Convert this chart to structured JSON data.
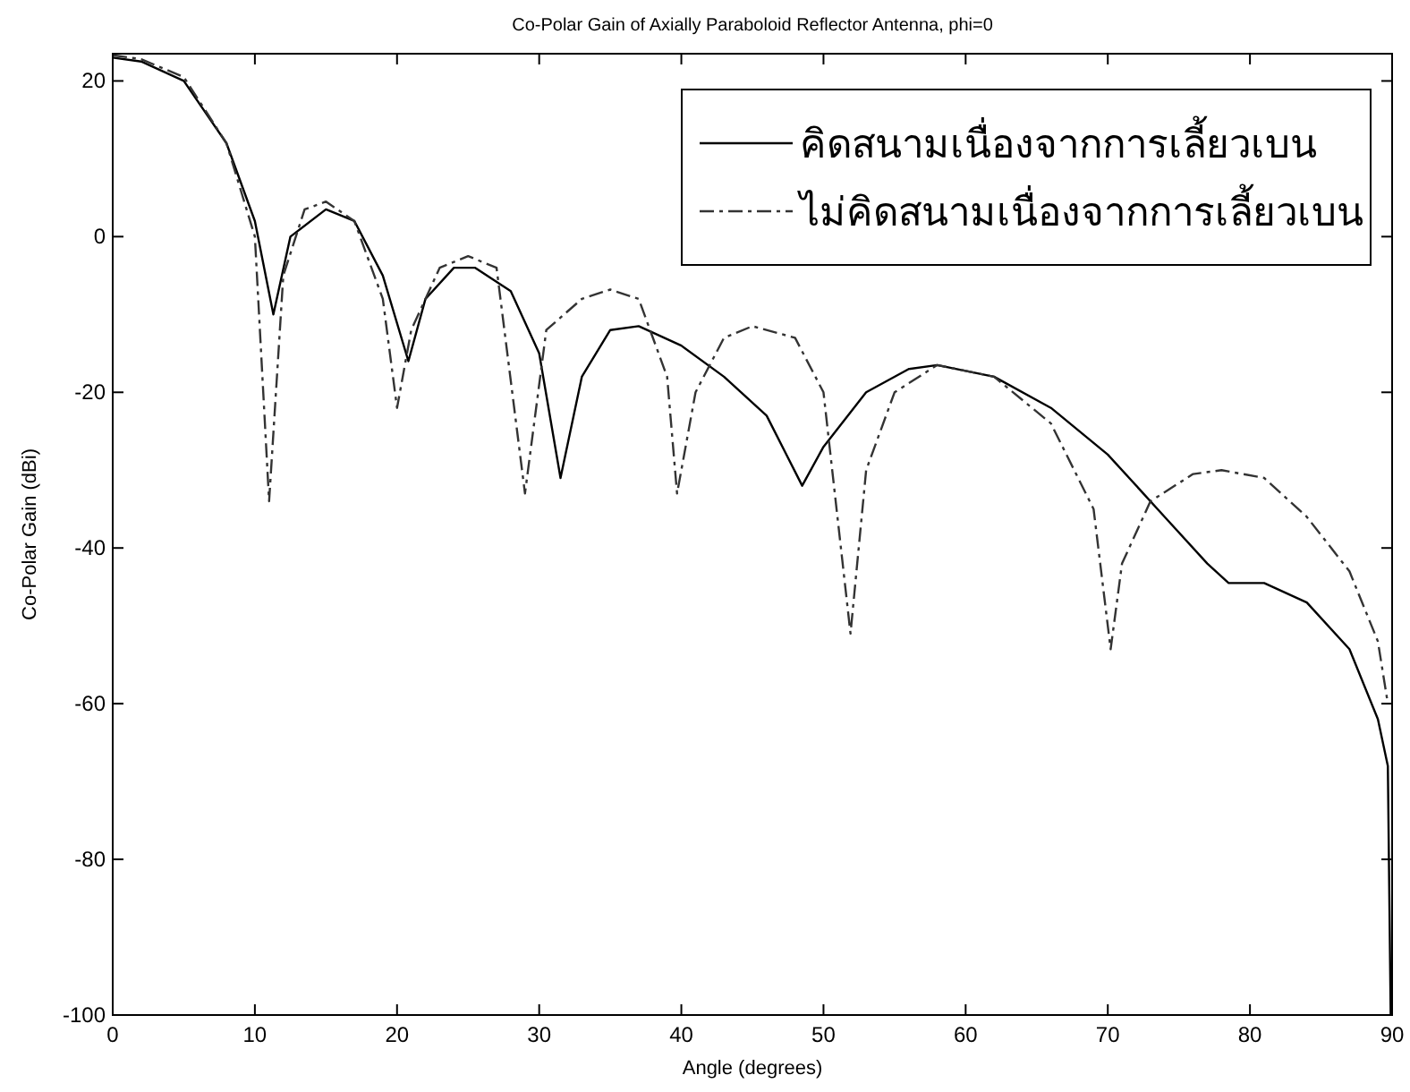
{
  "chart_data": {
    "type": "line",
    "title": "Co-Polar Gain of Axially Paraboloid Reflector Antenna, phi=0",
    "xlabel": "Angle (degrees)",
    "ylabel": "Co-Polar Gain (dBi)",
    "xlim": [
      0,
      90
    ],
    "ylim": [
      -100,
      23.5
    ],
    "xticks": [
      0,
      10,
      20,
      30,
      40,
      50,
      60,
      70,
      80,
      90
    ],
    "yticks": [
      -100,
      -80,
      -60,
      -40,
      -20,
      0,
      20
    ],
    "grid": false,
    "legend": "top right",
    "series": [
      {
        "name": "คิดสนามเนื่องจากการเลี้ยวเบน",
        "color": "#000000",
        "line_style": "solid",
        "x": [
          0,
          2,
          5,
          8,
          10,
          11.3,
          12.5,
          15,
          17,
          19,
          20.8,
          22,
          24,
          25.5,
          28,
          30,
          31.5,
          33,
          35,
          37,
          40,
          43,
          46,
          48.5,
          50,
          53,
          56,
          58,
          62,
          66,
          70,
          74,
          77,
          78.5,
          81,
          84,
          87,
          89,
          89.7,
          89.9
        ],
        "values": [
          23,
          22.5,
          20,
          12,
          2,
          -10,
          0,
          3.5,
          2,
          -5,
          -16,
          -8,
          -4,
          -4,
          -7,
          -15,
          -31,
          -18,
          -12,
          -11.5,
          -14,
          -18,
          -23,
          -32,
          -27,
          -20,
          -17,
          -16.5,
          -18,
          -22,
          -28,
          -36,
          -42,
          -44.5,
          -44.5,
          -47,
          -53,
          -62,
          -68,
          -100
        ]
      },
      {
        "name": "ไม่คิดสนามเนื่องจากการเลี้ยวเบน",
        "color": "#333333",
        "line_style": "dashdot",
        "x": [
          0,
          2,
          5,
          8,
          10,
          11,
          12,
          13.5,
          15,
          17,
          19,
          20,
          21,
          23,
          25,
          27,
          29,
          30.5,
          33,
          35,
          37,
          39,
          39.7,
          41,
          43,
          45,
          48,
          50,
          51.9,
          53,
          55,
          58,
          62,
          66,
          69,
          70.2,
          71,
          73,
          76,
          78,
          81,
          84,
          87,
          89,
          89.7
        ],
        "values": [
          23.3,
          22.8,
          20.5,
          12,
          0,
          -34,
          -5,
          3.5,
          4.5,
          2,
          -8,
          -22,
          -12,
          -4,
          -2.5,
          -4,
          -33,
          -12,
          -8,
          -6.8,
          -8,
          -18,
          -33,
          -20,
          -13,
          -11.5,
          -13,
          -20,
          -51,
          -30,
          -20,
          -16.5,
          -18,
          -24,
          -35,
          -53,
          -42,
          -34,
          -30.5,
          -30,
          -31,
          -36,
          -43,
          -52,
          -60
        ]
      }
    ]
  }
}
